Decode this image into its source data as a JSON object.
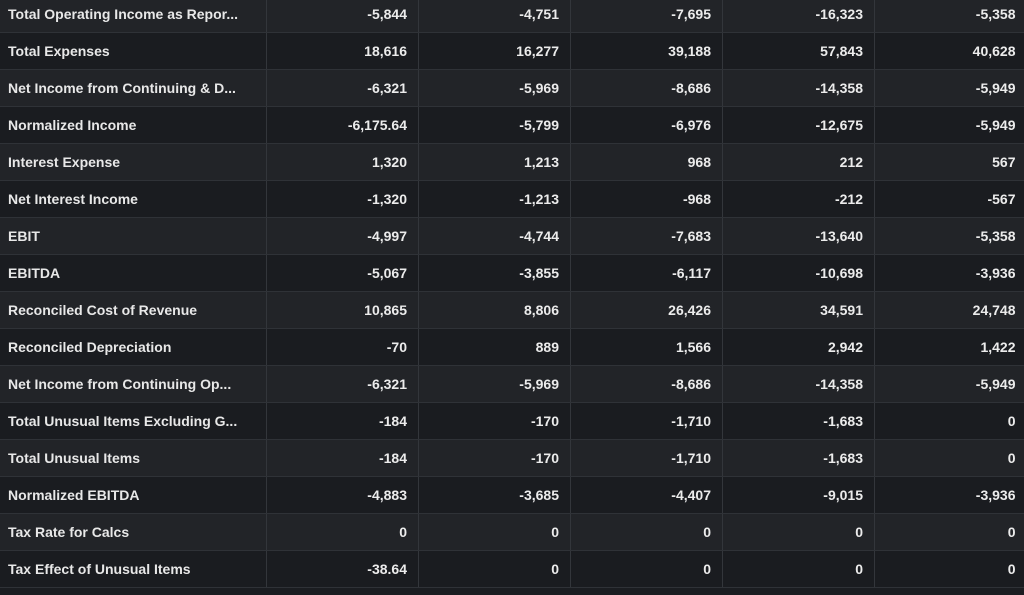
{
  "rows": [
    {
      "label": "Total Operating Income as Repor...",
      "values": [
        "-5,844",
        "-4,751",
        "-7,695",
        "-16,323",
        "-5,358"
      ]
    },
    {
      "label": "Total Expenses",
      "values": [
        "18,616",
        "16,277",
        "39,188",
        "57,843",
        "40,628"
      ]
    },
    {
      "label": "Net Income from Continuing & D...",
      "values": [
        "-6,321",
        "-5,969",
        "-8,686",
        "-14,358",
        "-5,949"
      ]
    },
    {
      "label": "Normalized Income",
      "values": [
        "-6,175.64",
        "-5,799",
        "-6,976",
        "-12,675",
        "-5,949"
      ]
    },
    {
      "label": "Interest Expense",
      "values": [
        "1,320",
        "1,213",
        "968",
        "212",
        "567"
      ]
    },
    {
      "label": "Net Interest Income",
      "values": [
        "-1,320",
        "-1,213",
        "-968",
        "-212",
        "-567"
      ]
    },
    {
      "label": "EBIT",
      "values": [
        "-4,997",
        "-4,744",
        "-7,683",
        "-13,640",
        "-5,358"
      ]
    },
    {
      "label": "EBITDA",
      "values": [
        "-5,067",
        "-3,855",
        "-6,117",
        "-10,698",
        "-3,936"
      ]
    },
    {
      "label": "Reconciled Cost of Revenue",
      "values": [
        "10,865",
        "8,806",
        "26,426",
        "34,591",
        "24,748"
      ]
    },
    {
      "label": "Reconciled Depreciation",
      "values": [
        "-70",
        "889",
        "1,566",
        "2,942",
        "1,422"
      ]
    },
    {
      "label": "Net Income from Continuing Op...",
      "values": [
        "-6,321",
        "-5,969",
        "-8,686",
        "-14,358",
        "-5,949"
      ]
    },
    {
      "label": "Total Unusual Items Excluding G...",
      "values": [
        "-184",
        "-170",
        "-1,710",
        "-1,683",
        "0"
      ]
    },
    {
      "label": "Total Unusual Items",
      "values": [
        "-184",
        "-170",
        "-1,710",
        "-1,683",
        "0"
      ]
    },
    {
      "label": "Normalized EBITDA",
      "values": [
        "-4,883",
        "-3,685",
        "-4,407",
        "-9,015",
        "-3,936"
      ]
    },
    {
      "label": "Tax Rate for Calcs",
      "values": [
        "0",
        "0",
        "0",
        "0",
        "0"
      ]
    },
    {
      "label": "Tax Effect of Unusual Items",
      "values": [
        "-38.64",
        "0",
        "0",
        "0",
        "0"
      ]
    }
  ]
}
